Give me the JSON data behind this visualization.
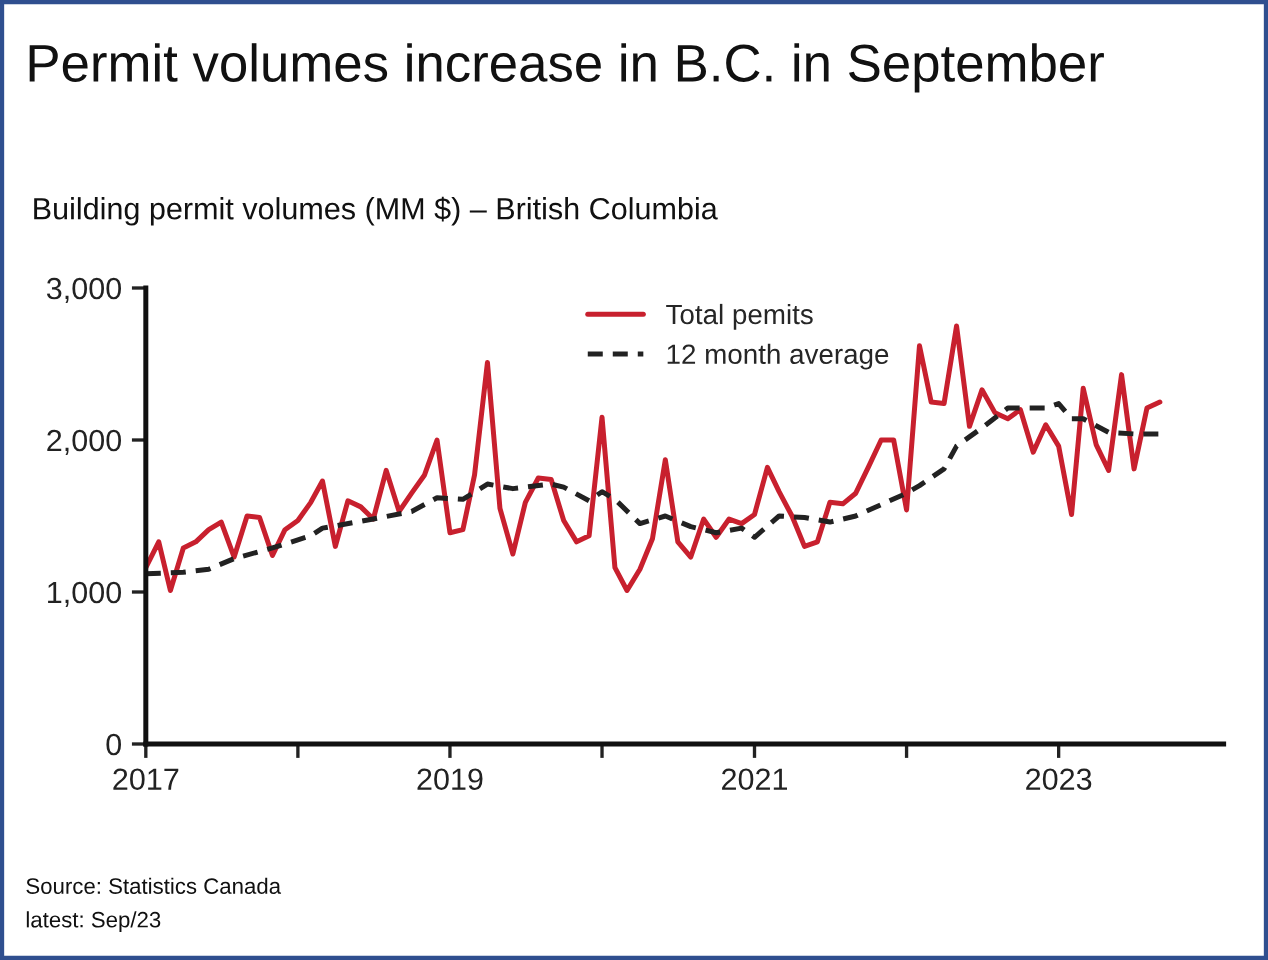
{
  "chart_data": {
    "type": "line",
    "title": "Permit volumes increase in B.C. in September",
    "subtitle": "Building permit volumes (MM $) – British Columbia",
    "x": [
      "2017-01",
      "2017-02",
      "2017-03",
      "2017-04",
      "2017-05",
      "2017-06",
      "2017-07",
      "2017-08",
      "2017-09",
      "2017-10",
      "2017-11",
      "2017-12",
      "2018-01",
      "2018-02",
      "2018-03",
      "2018-04",
      "2018-05",
      "2018-06",
      "2018-07",
      "2018-08",
      "2018-09",
      "2018-10",
      "2018-11",
      "2018-12",
      "2019-01",
      "2019-02",
      "2019-03",
      "2019-04",
      "2019-05",
      "2019-06",
      "2019-07",
      "2019-08",
      "2019-09",
      "2019-10",
      "2019-11",
      "2019-12",
      "2020-01",
      "2020-02",
      "2020-03",
      "2020-04",
      "2020-05",
      "2020-06",
      "2020-07",
      "2020-08",
      "2020-09",
      "2020-10",
      "2020-11",
      "2020-12",
      "2021-01",
      "2021-02",
      "2021-03",
      "2021-04",
      "2021-05",
      "2021-06",
      "2021-07",
      "2021-08",
      "2021-09",
      "2021-10",
      "2021-11",
      "2021-12",
      "2022-01",
      "2022-02",
      "2022-03",
      "2022-04",
      "2022-05",
      "2022-06",
      "2022-07",
      "2022-08",
      "2022-09",
      "2022-10",
      "2022-11",
      "2022-12",
      "2023-01",
      "2023-02",
      "2023-03",
      "2023-04",
      "2023-05",
      "2023-06",
      "2023-07",
      "2023-08",
      "2023-09"
    ],
    "series": [
      {
        "name": "Total pemits",
        "color": "#c8202e",
        "line_style": "solid",
        "values": [
          1160,
          1330,
          1010,
          1290,
          1330,
          1410,
          1460,
          1230,
          1500,
          1490,
          1240,
          1410,
          1470,
          1590,
          1730,
          1300,
          1600,
          1560,
          1480,
          1800,
          1530,
          1650,
          1770,
          2000,
          1390,
          1410,
          1770,
          2510,
          1550,
          1250,
          1590,
          1750,
          1740,
          1470,
          1330,
          1370,
          2150,
          1160,
          1010,
          1150,
          1350,
          1870,
          1330,
          1230,
          1480,
          1360,
          1480,
          1450,
          1510,
          1820,
          1660,
          1500,
          1300,
          1330,
          1590,
          1580,
          1650,
          1820,
          2000,
          2000,
          1540,
          2620,
          2250,
          2240,
          2750,
          2090,
          2330,
          2180,
          2140,
          2200,
          1920,
          2100,
          1960,
          1510,
          2340,
          1970,
          1800,
          2430,
          1810,
          2210,
          2250
        ]
      },
      {
        "name": "12 month average",
        "color": "#222222",
        "line_style": "dashed",
        "x": [
          "2017-01",
          "2017-04",
          "2017-06",
          "2017-08",
          "2017-11",
          "2018-02",
          "2018-03",
          "2018-07",
          "2018-10",
          "2018-12",
          "2019-02",
          "2019-04",
          "2019-06",
          "2019-09",
          "2019-10",
          "2019-12",
          "2020-01",
          "2020-02",
          "2020-04",
          "2020-06",
          "2020-08",
          "2020-10",
          "2020-12",
          "2021-01",
          "2021-03",
          "2021-05",
          "2021-07",
          "2021-09",
          "2022-01",
          "2022-02",
          "2022-04",
          "2022-05",
          "2022-07",
          "2022-09",
          "2022-12",
          "2023-01",
          "2023-02",
          "2023-03",
          "2023-05",
          "2023-07",
          "2023-09"
        ],
        "values": [
          1120,
          1130,
          1150,
          1220,
          1290,
          1370,
          1420,
          1480,
          1530,
          1620,
          1610,
          1710,
          1680,
          1710,
          1690,
          1600,
          1660,
          1610,
          1450,
          1500,
          1430,
          1390,
          1420,
          1360,
          1500,
          1490,
          1460,
          1500,
          1650,
          1700,
          1810,
          1960,
          2080,
          2210,
          2210,
          2240,
          2140,
          2140,
          2050,
          2040,
          2040
        ]
      }
    ],
    "xlim": [
      "2017-01",
      "2024-02"
    ],
    "xticks": [
      {
        "value": "2017",
        "label": "2017"
      },
      {
        "value": "2018",
        "label": null
      },
      {
        "value": "2019",
        "label": "2019"
      },
      {
        "value": "2020",
        "label": null
      },
      {
        "value": "2021",
        "label": "2021"
      },
      {
        "value": "2022",
        "label": null
      },
      {
        "value": "2023",
        "label": "2023"
      }
    ],
    "ylim": [
      0,
      3000
    ],
    "yticks": [
      0,
      {
        "value": 1000,
        "label": "1,000"
      },
      {
        "value": 2000,
        "label": "2,000"
      },
      {
        "value": 3000,
        "label": "3,000"
      }
    ],
    "grid": false,
    "legend": "top",
    "marker": "none",
    "annotations": [
      "Source: Statistics Canada",
      "latest: Sep/23"
    ]
  }
}
